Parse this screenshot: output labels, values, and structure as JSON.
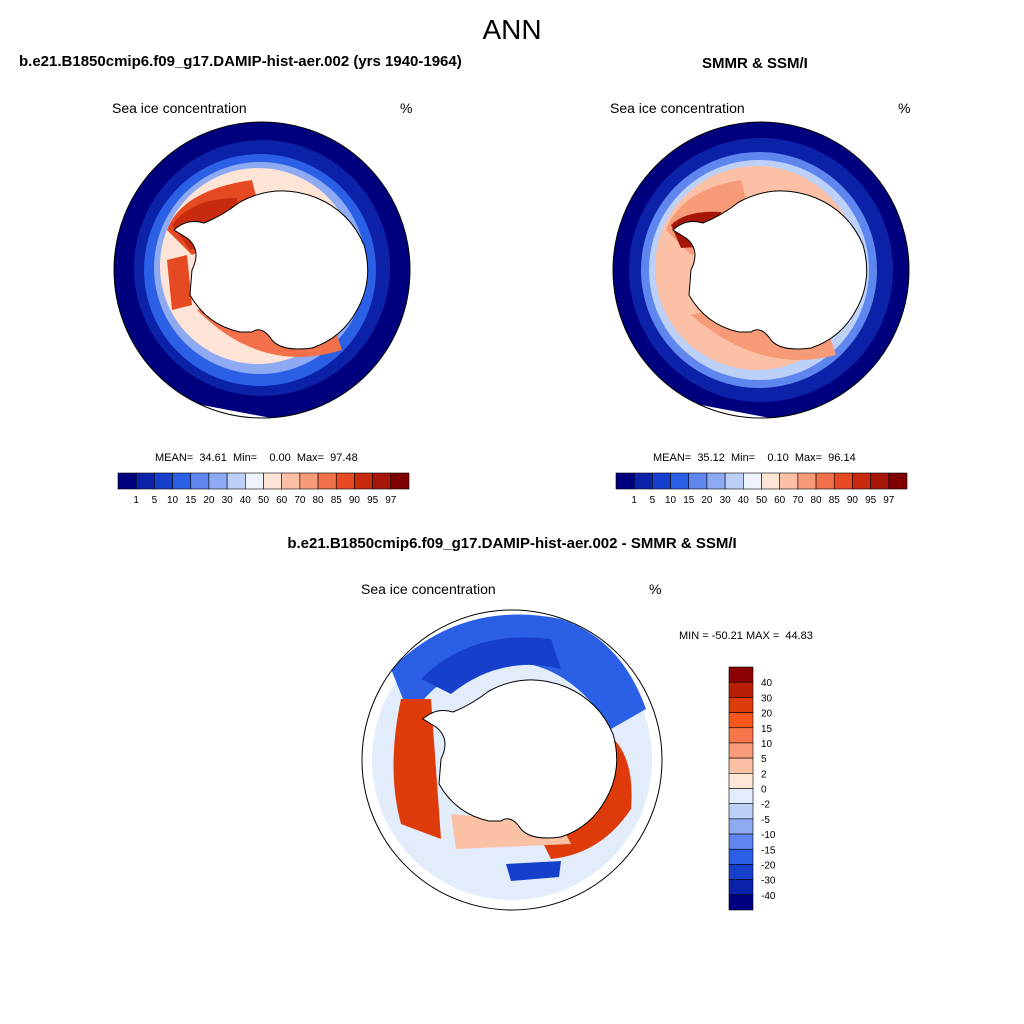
{
  "figure": {
    "season": "ANN"
  },
  "panels": {
    "model": {
      "title": "b.e21.B1850cmip6.f09_g17.DAMIP-hist-aer.002 (yrs 1940-1964)",
      "var_label": "Sea ice concentration",
      "units": "%",
      "stats": "MEAN=  34.61  Min=    0.00  Max=  97.48"
    },
    "obs": {
      "title": "SMMR & SSM/I",
      "var_label": "Sea ice concentration",
      "units": "%",
      "stats": "MEAN=  35.12  Min=    0.10  Max=  96.14"
    },
    "diff": {
      "title": "b.e21.B1850cmip6.f09_g17.DAMIP-hist-aer.002 - SMMR & SSM/I",
      "var_label": "Sea ice concentration",
      "units": "%",
      "stats": "MIN = -50.21 MAX =  44.83"
    }
  },
  "colorbars": {
    "concentration": {
      "labels": [
        "1",
        "5",
        "10",
        "15",
        "20",
        "30",
        "40",
        "50",
        "60",
        "70",
        "80",
        "85",
        "90",
        "95",
        "97"
      ],
      "colors": [
        "#00007f",
        "#0b22a8",
        "#1640cc",
        "#2a5fe6",
        "#5f86ee",
        "#8eaaf2",
        "#bcd0f8",
        "#eef3fc",
        "#fde4d6",
        "#fbc0a6",
        "#f79a78",
        "#f3714a",
        "#e64a22",
        "#c72a0c",
        "#a61508",
        "#7f0000"
      ]
    },
    "difference": {
      "labels": [
        "40",
        "30",
        "20",
        "15",
        "10",
        "5",
        "2",
        "0",
        "-2",
        "-5",
        "-10",
        "-15",
        "-20",
        "-30",
        "-40"
      ],
      "colors": [
        "#8b0000",
        "#b81f06",
        "#de3a0a",
        "#f4561c",
        "#f7764a",
        "#f99a78",
        "#fbc1a4",
        "#fde6d6",
        "#e2ecfb",
        "#bcd0f8",
        "#8eaaf2",
        "#5f86ee",
        "#2a5fe6",
        "#1640cc",
        "#0b22a8",
        "#00007f"
      ]
    }
  }
}
